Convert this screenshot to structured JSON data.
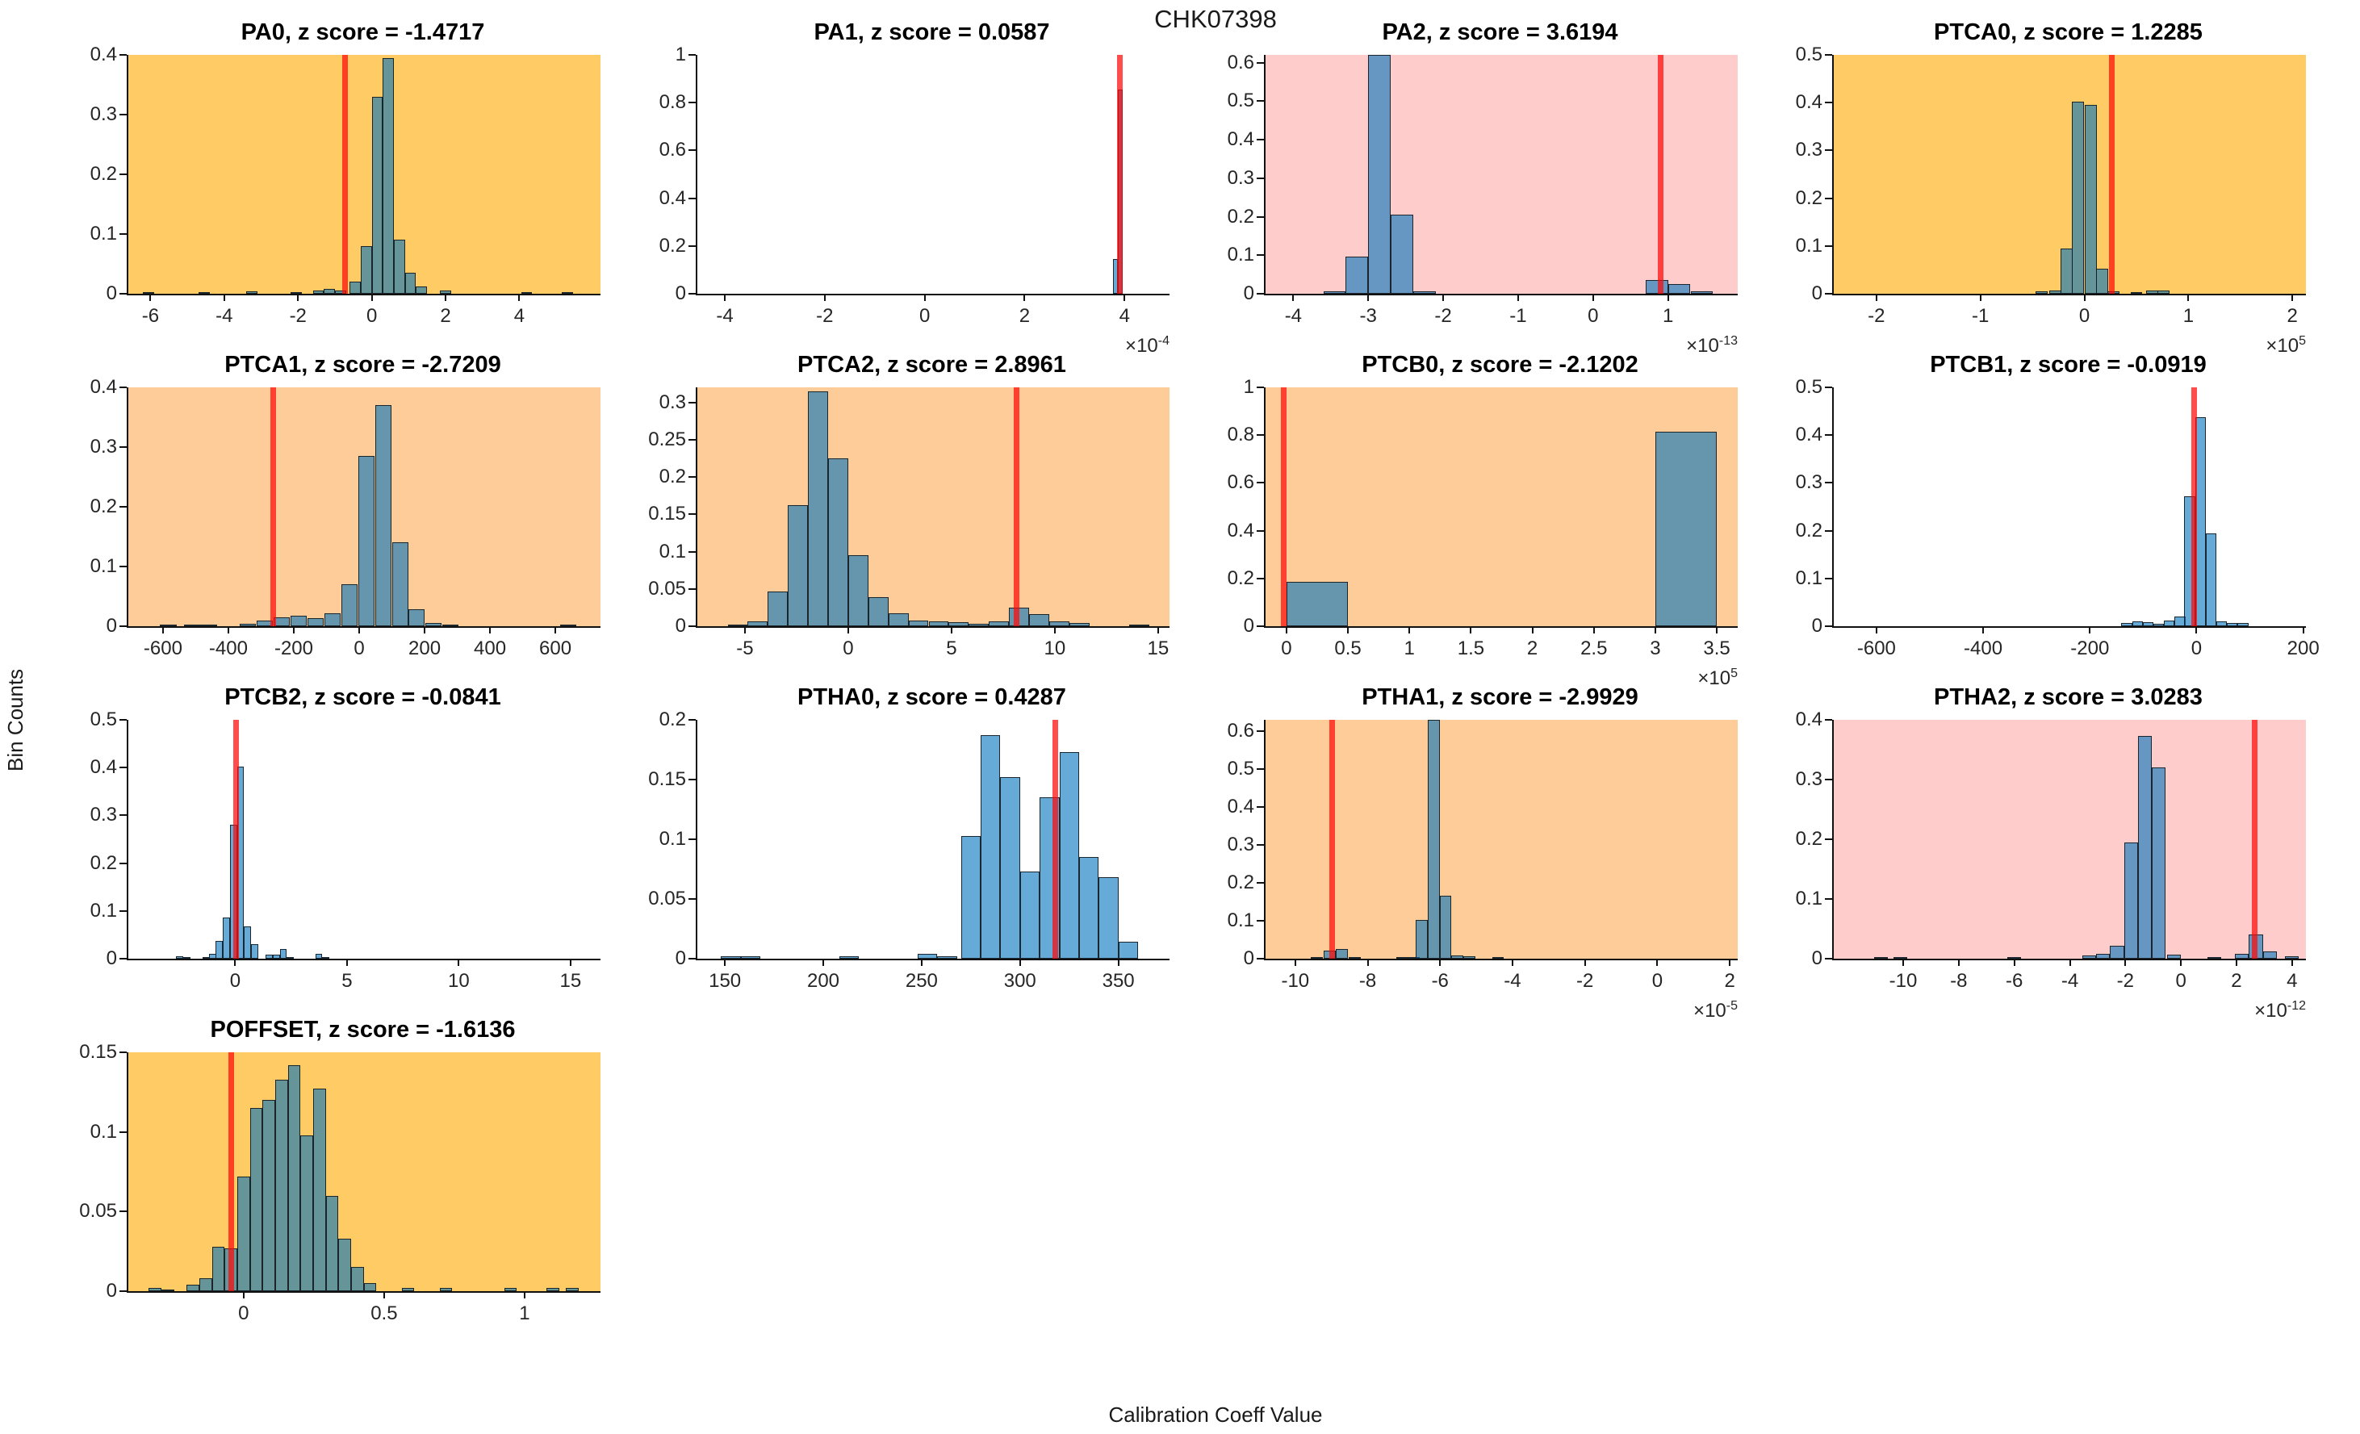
{
  "figure": {
    "title": "CHK07398",
    "xlabel": "Calibration Coeff Value",
    "ylabel": "Bin Counts"
  },
  "colors": {
    "bar_fill": "rgba(0,114,189,0.6)",
    "bar_edge": "rgba(18,24,30,0.9)",
    "z_line_red": "rgba(255,8,8,0.72)",
    "gold": "#FECB64",
    "peach": "#FECC98",
    "pink": "#FECCCA",
    "white": "#FFFFFF",
    "axis": "#111111",
    "text": "#262626"
  },
  "chart_data": [
    {
      "type": "bar",
      "name": "PA0",
      "title": "PA0, z score = -1.4717",
      "z_score": -1.4717,
      "bg": "gold",
      "xlim": [
        -6.6,
        6.2
      ],
      "ylim": [
        0,
        0.4
      ],
      "bin_width": 0.3,
      "xtick_vals": [
        -6,
        -4,
        -2,
        0,
        2,
        4
      ],
      "xtick_labels": [
        "-6",
        "-4",
        "-2",
        "0",
        "2",
        "4"
      ],
      "ytick_vals": [
        0,
        0.1,
        0.2,
        0.3,
        0.4
      ],
      "ytick_labels": [
        "0",
        "0.1",
        "0.2",
        "0.3",
        "0.4"
      ],
      "exp": null,
      "z_line_x": -0.72,
      "bars": [
        [
          -6.05,
          0.003
        ],
        [
          -4.55,
          0.002
        ],
        [
          -3.25,
          0.004
        ],
        [
          -2.05,
          0.002
        ],
        [
          -1.45,
          0.005
        ],
        [
          -1.15,
          0.008
        ],
        [
          -0.85,
          0.006
        ],
        [
          -0.45,
          0.02
        ],
        [
          -0.15,
          0.08
        ],
        [
          0.15,
          0.33
        ],
        [
          0.45,
          0.395
        ],
        [
          0.75,
          0.09
        ],
        [
          1.05,
          0.035
        ],
        [
          1.35,
          0.012
        ],
        [
          2.0,
          0.005
        ],
        [
          4.2,
          0.002
        ],
        [
          5.3,
          0.003
        ]
      ]
    },
    {
      "type": "bar",
      "name": "PA1",
      "title": "PA1, z score = 0.0587",
      "z_score": 0.0587,
      "bg": "white",
      "xlim": [
        -4.55,
        4.9
      ],
      "ylim": [
        0,
        1
      ],
      "bin_width": 0.1,
      "xtick_vals": [
        -4,
        -2,
        0,
        2,
        4
      ],
      "xtick_labels": [
        "-4",
        "-2",
        "0",
        "2",
        "4"
      ],
      "ytick_vals": [
        0,
        0.2,
        0.4,
        0.6,
        0.8,
        1
      ],
      "ytick_labels": [
        "0",
        "0.2",
        "0.4",
        "0.6",
        "0.8",
        "1"
      ],
      "exp": "-4",
      "z_line_x": 3.9,
      "bars": [
        [
          3.82,
          0.145
        ],
        [
          3.92,
          0.855
        ]
      ]
    },
    {
      "type": "bar",
      "name": "PA2",
      "title": "PA2, z score = 3.6194",
      "z_score": 3.6194,
      "bg": "pink",
      "xlim": [
        -4.37,
        1.93
      ],
      "ylim": [
        0,
        0.62
      ],
      "bin_width": 0.3,
      "xtick_vals": [
        -4,
        -3,
        -2,
        -1,
        0,
        1
      ],
      "xtick_labels": [
        "-4",
        "-3",
        "-2",
        "-1",
        "0",
        "1"
      ],
      "ytick_vals": [
        0,
        0.1,
        0.2,
        0.3,
        0.4,
        0.5,
        0.6
      ],
      "ytick_labels": [
        "0",
        "0.1",
        "0.2",
        "0.3",
        "0.4",
        "0.5",
        "0.6"
      ],
      "exp": "-13",
      "z_line_x": 0.9,
      "bars": [
        [
          -3.45,
          0.007
        ],
        [
          -3.15,
          0.096
        ],
        [
          -2.85,
          0.62
        ],
        [
          -2.55,
          0.205
        ],
        [
          -2.25,
          0.006
        ],
        [
          0.85,
          0.036
        ],
        [
          1.15,
          0.026
        ],
        [
          1.45,
          0.006
        ]
      ]
    },
    {
      "type": "bar",
      "name": "PTCA0",
      "title": "PTCA0, z score = 1.2285",
      "z_score": 1.2285,
      "bg": "gold",
      "xlim": [
        -2.41,
        2.13
      ],
      "ylim": [
        0,
        0.5
      ],
      "bin_width": 0.115,
      "xtick_vals": [
        -2,
        -1,
        0,
        1,
        2
      ],
      "xtick_labels": [
        "-2",
        "-1",
        "0",
        "1",
        "2"
      ],
      "ytick_vals": [
        0,
        0.1,
        0.2,
        0.3,
        0.4,
        0.5
      ],
      "ytick_labels": [
        "0",
        "0.1",
        "0.2",
        "0.3",
        "0.4",
        "0.5"
      ],
      "exp": "5",
      "z_line_x": 0.26,
      "bars": [
        [
          -0.41,
          0.005
        ],
        [
          -0.28,
          0.006
        ],
        [
          -0.17,
          0.095
        ],
        [
          -0.06,
          0.402
        ],
        [
          0.06,
          0.395
        ],
        [
          0.17,
          0.052
        ],
        [
          0.28,
          0.005
        ],
        [
          0.5,
          0.003
        ],
        [
          0.65,
          0.007
        ],
        [
          0.76,
          0.006
        ]
      ]
    },
    {
      "type": "bar",
      "name": "PTCA1",
      "title": "PTCA1, z score = -2.7209",
      "z_score": -2.7209,
      "bg": "peach",
      "xlim": [
        -706,
        738
      ],
      "ylim": [
        0,
        0.4
      ],
      "bin_width": 50,
      "xtick_vals": [
        -600,
        -400,
        -200,
        0,
        200,
        400,
        600
      ],
      "xtick_labels": [
        "-600",
        "-400",
        "-200",
        "0",
        "200",
        "400",
        "600"
      ],
      "ytick_vals": [
        0,
        0.1,
        0.2,
        0.3,
        0.4
      ],
      "ytick_labels": [
        "0",
        "0.1",
        "0.2",
        "0.3",
        "0.4"
      ],
      "exp": null,
      "z_line_x": -262,
      "bars": [
        [
          -584,
          0.003
        ],
        [
          -510,
          0.003
        ],
        [
          -460,
          0.002
        ],
        [
          -340,
          0.004
        ],
        [
          -288,
          0.009
        ],
        [
          -237,
          0.015
        ],
        [
          -185,
          0.017
        ],
        [
          -133,
          0.013
        ],
        [
          -81,
          0.021
        ],
        [
          -29,
          0.07
        ],
        [
          23,
          0.285
        ],
        [
          74,
          0.37
        ],
        [
          125,
          0.14
        ],
        [
          176,
          0.028
        ],
        [
          227,
          0.005
        ],
        [
          278,
          0.002
        ],
        [
          640,
          0.002
        ]
      ]
    },
    {
      "type": "bar",
      "name": "PTCA2",
      "title": "PTCA2, z score = 2.8961",
      "z_score": 2.8961,
      "bg": "peach",
      "xlim": [
        -7.3,
        15.55
      ],
      "ylim": [
        0,
        0.32
      ],
      "bin_width": 0.97,
      "xtick_vals": [
        -5,
        0,
        5,
        10,
        15
      ],
      "xtick_labels": [
        "-5",
        "0",
        "5",
        "10",
        "15"
      ],
      "ytick_vals": [
        0,
        0.05,
        0.1,
        0.15,
        0.2,
        0.25,
        0.3
      ],
      "ytick_labels": [
        "0",
        "0.05",
        "0.1",
        "0.15",
        "0.2",
        "0.25",
        "0.3"
      ],
      "exp": null,
      "z_line_x": 8.16,
      "bars": [
        [
          -5.35,
          0.002
        ],
        [
          -4.38,
          0.006
        ],
        [
          -3.4,
          0.047
        ],
        [
          -2.43,
          0.162
        ],
        [
          -1.46,
          0.315
        ],
        [
          -0.49,
          0.225
        ],
        [
          0.49,
          0.095
        ],
        [
          1.46,
          0.039
        ],
        [
          2.43,
          0.017
        ],
        [
          3.4,
          0.008
        ],
        [
          4.38,
          0.006
        ],
        [
          5.35,
          0.005
        ],
        [
          6.32,
          0.003
        ],
        [
          7.3,
          0.006
        ],
        [
          8.27,
          0.025
        ],
        [
          9.24,
          0.016
        ],
        [
          10.21,
          0.006
        ],
        [
          11.19,
          0.004
        ],
        [
          14.1,
          0.002
        ]
      ]
    },
    {
      "type": "bar",
      "name": "PTCB0",
      "title": "PTCB0, z score = -2.1202",
      "z_score": -2.1202,
      "bg": "peach",
      "xlim": [
        -0.17,
        3.67
      ],
      "ylim": [
        0,
        1
      ],
      "bin_width": 0.5,
      "xtick_vals": [
        0,
        0.5,
        1,
        1.5,
        2,
        2.5,
        3,
        3.5
      ],
      "xtick_labels": [
        "0",
        "0.5",
        "1",
        "1.5",
        "2",
        "2.5",
        "3",
        "3.5"
      ],
      "ytick_vals": [
        0,
        0.2,
        0.4,
        0.6,
        0.8,
        1
      ],
      "ytick_labels": [
        "0",
        "0.2",
        "0.4",
        "0.6",
        "0.8",
        "1"
      ],
      "exp": "5",
      "z_line_x": -0.02,
      "bars": [
        [
          0.25,
          0.185
        ],
        [
          3.25,
          0.815
        ]
      ]
    },
    {
      "type": "bar",
      "name": "PTCB1",
      "title": "PTCB1, z score = -0.0919",
      "z_score": -0.0919,
      "bg": "white",
      "xlim": [
        -680,
        205
      ],
      "ylim": [
        0,
        0.5
      ],
      "bin_width": 20,
      "xtick_vals": [
        -600,
        -400,
        -200,
        0,
        200
      ],
      "xtick_labels": [
        "-600",
        "-400",
        "-200",
        "0",
        "200"
      ],
      "ytick_vals": [
        0,
        0.1,
        0.2,
        0.3,
        0.4,
        0.5
      ],
      "ytick_labels": [
        "0",
        "0.1",
        "0.2",
        "0.3",
        "0.4",
        "0.5"
      ],
      "exp": null,
      "z_line_x": -5,
      "bars": [
        [
          -131,
          0.006
        ],
        [
          -111,
          0.011
        ],
        [
          -91,
          0.009
        ],
        [
          -71,
          0.005
        ],
        [
          -51,
          0.012
        ],
        [
          -31,
          0.021
        ],
        [
          -13,
          0.272
        ],
        [
          7,
          0.438
        ],
        [
          27,
          0.194
        ],
        [
          47,
          0.011
        ],
        [
          67,
          0.007
        ],
        [
          87,
          0.006
        ]
      ]
    },
    {
      "type": "bar",
      "name": "PTCB2",
      "title": "PTCB2, z score = -0.0841",
      "z_score": -0.0841,
      "bg": "white",
      "xlim": [
        -4.78,
        16.34
      ],
      "ylim": [
        0,
        0.5
      ],
      "bin_width": 0.32,
      "xtick_vals": [
        0,
        5,
        10,
        15
      ],
      "xtick_labels": [
        "0",
        "5",
        "10",
        "15"
      ],
      "ytick_vals": [
        0,
        0.1,
        0.2,
        0.3,
        0.4,
        0.5
      ],
      "ytick_labels": [
        "0",
        "0.1",
        "0.2",
        "0.3",
        "0.4",
        "0.5"
      ],
      "exp": null,
      "z_line_x": 0.04,
      "bars": [
        [
          -2.5,
          0.005
        ],
        [
          -2.16,
          0.003
        ],
        [
          -1.31,
          0.004
        ],
        [
          -1.02,
          0.01
        ],
        [
          -0.71,
          0.038
        ],
        [
          -0.39,
          0.087
        ],
        [
          -0.08,
          0.28
        ],
        [
          0.24,
          0.402
        ],
        [
          0.56,
          0.067
        ],
        [
          0.88,
          0.031
        ],
        [
          1.51,
          0.008
        ],
        [
          1.83,
          0.009
        ],
        [
          2.15,
          0.021
        ],
        [
          2.47,
          0.003
        ],
        [
          3.74,
          0.011
        ],
        [
          4.06,
          0.004
        ]
      ]
    },
    {
      "type": "bar",
      "name": "PTHA0",
      "title": "PTHA0, z score = 0.4287",
      "z_score": 0.4287,
      "bg": "white",
      "xlim": [
        136,
        376
      ],
      "ylim": [
        0,
        0.2
      ],
      "bin_width": 10,
      "xtick_vals": [
        150,
        200,
        250,
        300,
        350
      ],
      "xtick_labels": [
        "150",
        "200",
        "250",
        "300",
        "350"
      ],
      "ytick_vals": [
        0,
        0.05,
        0.1,
        0.15,
        0.2
      ],
      "ytick_labels": [
        "0",
        "0.05",
        "0.1",
        "0.15",
        "0.2"
      ],
      "exp": null,
      "z_line_x": 318,
      "bars": [
        [
          153,
          0.002
        ],
        [
          163,
          0.002
        ],
        [
          213,
          0.002
        ],
        [
          253,
          0.004
        ],
        [
          263,
          0.002
        ],
        [
          275,
          0.103
        ],
        [
          285,
          0.187
        ],
        [
          295,
          0.152
        ],
        [
          305,
          0.073
        ],
        [
          315,
          0.135
        ],
        [
          325,
          0.173
        ],
        [
          335,
          0.085
        ],
        [
          345,
          0.068
        ],
        [
          355,
          0.014
        ]
      ]
    },
    {
      "type": "bar",
      "name": "PTHA1",
      "title": "PTHA1, z score = -2.9929",
      "z_score": -2.9929,
      "bg": "peach",
      "xlim": [
        -10.82,
        2.22
      ],
      "ylim": [
        0,
        0.63
      ],
      "bin_width": 0.33,
      "xtick_vals": [
        -10,
        -8,
        -6,
        -4,
        -2,
        0,
        2
      ],
      "xtick_labels": [
        "-10",
        "-8",
        "-6",
        "-4",
        "-2",
        "0",
        "2"
      ],
      "ytick_vals": [
        0,
        0.1,
        0.2,
        0.3,
        0.4,
        0.5,
        0.6
      ],
      "ytick_labels": [
        "0",
        "0.1",
        "0.2",
        "0.3",
        "0.4",
        "0.5",
        "0.6"
      ],
      "exp": "-5",
      "z_line_x": -8.97,
      "bars": [
        [
          -9.4,
          0.004
        ],
        [
          -9.05,
          0.021
        ],
        [
          -8.72,
          0.025
        ],
        [
          -8.35,
          0.003
        ],
        [
          -7.05,
          0.002
        ],
        [
          -6.72,
          0.003
        ],
        [
          -6.5,
          0.103
        ],
        [
          -6.17,
          0.63
        ],
        [
          -5.85,
          0.165
        ],
        [
          -5.52,
          0.009
        ],
        [
          -5.2,
          0.007
        ],
        [
          -4.4,
          0.004
        ]
      ]
    },
    {
      "type": "bar",
      "name": "PTHA2",
      "title": "PTHA2, z score = 3.0283",
      "z_score": 3.0283,
      "bg": "pink",
      "xlim": [
        -12.5,
        4.5
      ],
      "ylim": [
        0,
        0.4
      ],
      "bin_width": 0.5,
      "xtick_vals": [
        -10,
        -8,
        -6,
        -4,
        -2,
        0,
        2,
        4
      ],
      "xtick_labels": [
        "-10",
        "-8",
        "-6",
        "-4",
        "-2",
        "0",
        "2",
        "4"
      ],
      "ytick_vals": [
        0,
        0.1,
        0.2,
        0.3,
        0.4
      ],
      "ytick_labels": [
        "0",
        "0.1",
        "0.2",
        "0.3",
        "0.4"
      ],
      "exp": "-12",
      "z_line_x": 2.65,
      "bars": [
        [
          -10.8,
          0.002
        ],
        [
          -10.1,
          0.002
        ],
        [
          -6.0,
          0.002
        ],
        [
          -3.3,
          0.005
        ],
        [
          -2.8,
          0.008
        ],
        [
          -2.3,
          0.022
        ],
        [
          -1.8,
          0.195
        ],
        [
          -1.3,
          0.373
        ],
        [
          -0.8,
          0.32
        ],
        [
          -0.25,
          0.007
        ],
        [
          1.2,
          0.002
        ],
        [
          2.2,
          0.008
        ],
        [
          2.7,
          0.04
        ],
        [
          3.2,
          0.012
        ],
        [
          4.0,
          0.004
        ]
      ]
    },
    {
      "type": "bar",
      "name": "POFFSET",
      "title": "POFFSET, z score = -1.6136",
      "z_score": -1.6136,
      "bg": "gold",
      "xlim": [
        -0.41,
        1.27
      ],
      "ylim": [
        0,
        0.15
      ],
      "bin_width": 0.045,
      "xtick_vals": [
        0,
        0.5,
        1
      ],
      "xtick_labels": [
        "0",
        "0.5",
        "1"
      ],
      "ytick_vals": [
        0,
        0.05,
        0.1,
        0.15
      ],
      "ytick_labels": [
        "0",
        "0.05",
        "0.1",
        "0.15"
      ],
      "exp": null,
      "z_line_x": -0.045,
      "bars": [
        [
          -0.315,
          0.002
        ],
        [
          -0.27,
          0.001
        ],
        [
          -0.18,
          0.004
        ],
        [
          -0.135,
          0.008
        ],
        [
          -0.09,
          0.028
        ],
        [
          -0.045,
          0.027
        ],
        [
          0.0,
          0.072
        ],
        [
          0.045,
          0.115
        ],
        [
          0.09,
          0.12
        ],
        [
          0.135,
          0.133
        ],
        [
          0.18,
          0.142
        ],
        [
          0.225,
          0.098
        ],
        [
          0.27,
          0.127
        ],
        [
          0.315,
          0.06
        ],
        [
          0.36,
          0.033
        ],
        [
          0.405,
          0.015
        ],
        [
          0.45,
          0.005
        ],
        [
          0.585,
          0.002
        ],
        [
          0.72,
          0.002
        ],
        [
          0.95,
          0.002
        ],
        [
          1.1,
          0.002
        ],
        [
          1.17,
          0.002
        ]
      ]
    }
  ]
}
